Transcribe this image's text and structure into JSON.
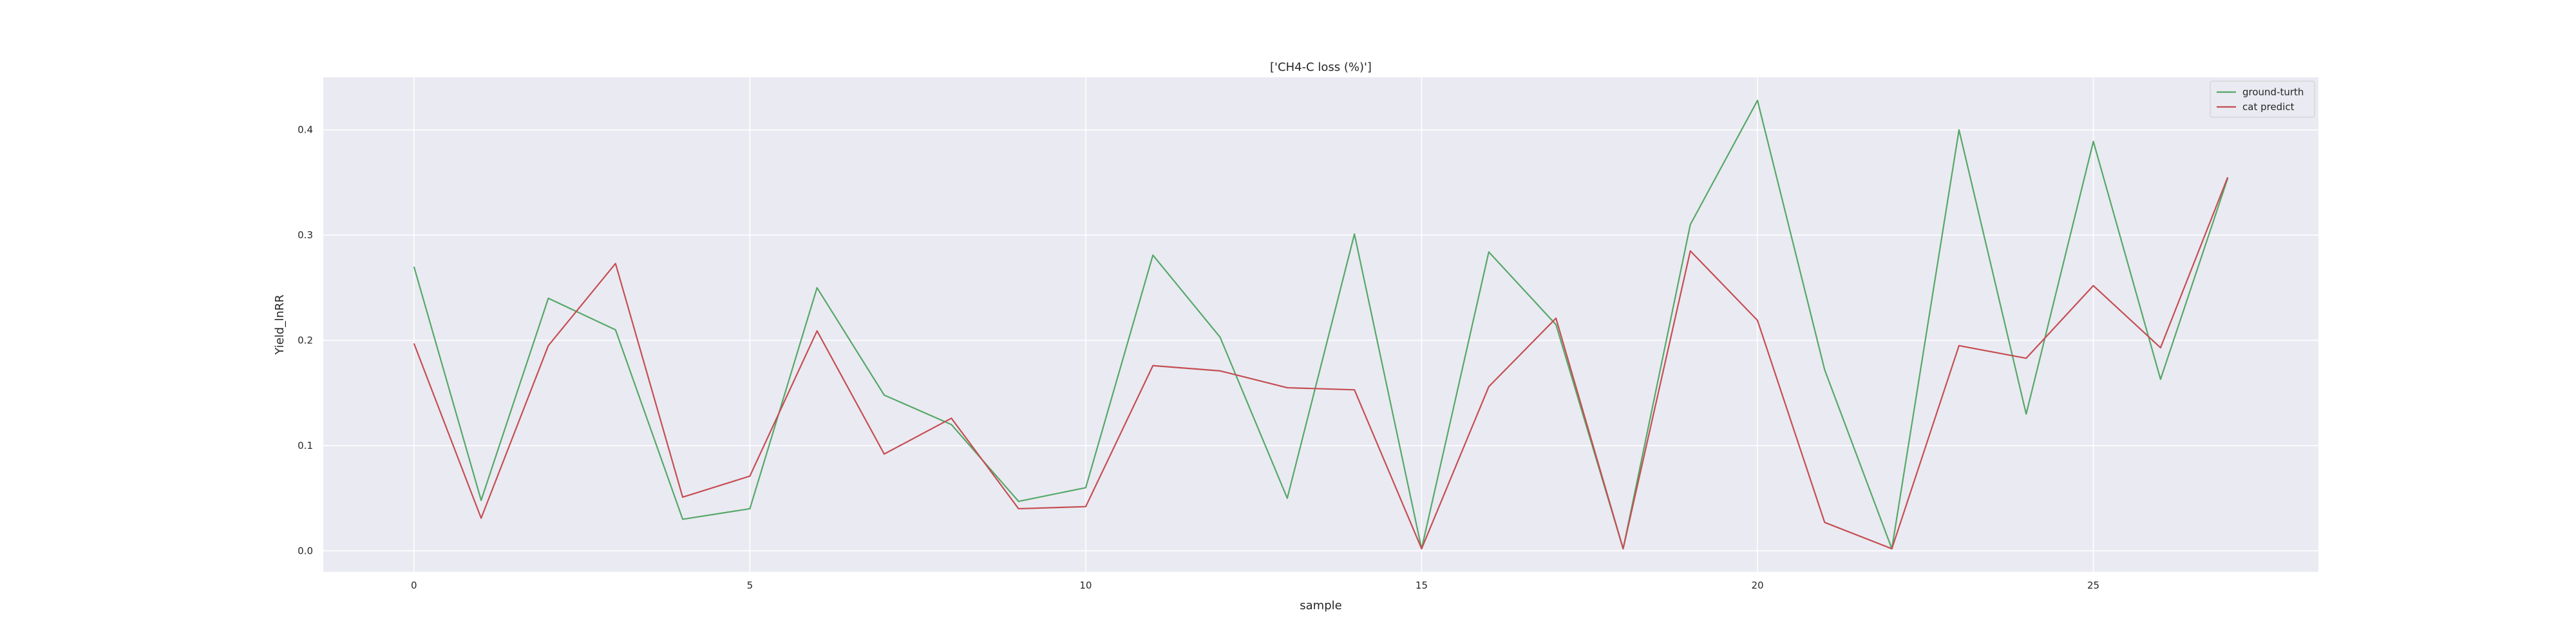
{
  "chart_data": {
    "type": "line",
    "title": "['CH4-C loss (%)']",
    "xlabel": "sample",
    "ylabel": "Yield_lnRR",
    "x": [
      0,
      1,
      2,
      3,
      4,
      5,
      6,
      7,
      8,
      9,
      10,
      11,
      12,
      13,
      14,
      15,
      16,
      17,
      18,
      19,
      20,
      21,
      22,
      23,
      24,
      25,
      26,
      27
    ],
    "xlim": [
      -1.35,
      28.35
    ],
    "ylim": [
      -0.02,
      0.45
    ],
    "xticks": [
      0,
      5,
      10,
      15,
      20,
      25
    ],
    "xtick_labels": [
      "0",
      "5",
      "10",
      "15",
      "20",
      "25"
    ],
    "yticks": [
      0.0,
      0.1,
      0.2,
      0.3,
      0.4
    ],
    "ytick_labels": [
      "0.0",
      "0.1",
      "0.2",
      "0.3",
      "0.4"
    ],
    "grid": true,
    "legend_position": "top-right",
    "series": [
      {
        "name": "ground-turth",
        "color": "#55a868",
        "values": [
          0.27,
          0.048,
          0.24,
          0.21,
          0.03,
          0.04,
          0.25,
          0.148,
          0.12,
          0.047,
          0.06,
          0.281,
          0.203,
          0.05,
          0.301,
          0.002,
          0.284,
          0.215,
          0.002,
          0.31,
          0.428,
          0.172,
          0.002,
          0.4,
          0.13,
          0.389,
          0.163,
          0.354
        ]
      },
      {
        "name": "cat predict",
        "color": "#c44e52",
        "values": [
          0.197,
          0.031,
          0.195,
          0.273,
          0.051,
          0.071,
          0.209,
          0.092,
          0.126,
          0.04,
          0.042,
          0.176,
          0.171,
          0.155,
          0.153,
          0.002,
          0.156,
          0.221,
          0.002,
          0.285,
          0.219,
          0.027,
          0.002,
          0.195,
          0.183,
          0.252,
          0.193,
          0.355
        ]
      }
    ]
  }
}
